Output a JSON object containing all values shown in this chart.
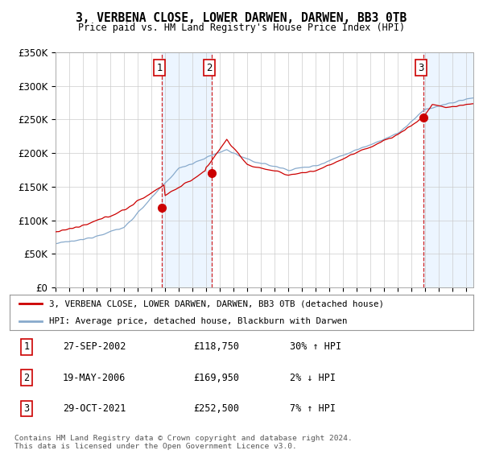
{
  "title": "3, VERBENA CLOSE, LOWER DARWEN, DARWEN, BB3 0TB",
  "subtitle": "Price paid vs. HM Land Registry's House Price Index (HPI)",
  "ylim": [
    0,
    350000
  ],
  "yticks": [
    0,
    50000,
    100000,
    150000,
    200000,
    250000,
    300000,
    350000
  ],
  "ytick_labels": [
    "£0",
    "£50K",
    "£100K",
    "£150K",
    "£200K",
    "£250K",
    "£300K",
    "£350K"
  ],
  "xlim_start": 1995,
  "xlim_end": 2025.5,
  "sale_dates_num": [
    2002.74,
    2006.38,
    2021.83
  ],
  "sale_prices": [
    118750,
    169950,
    252500
  ],
  "sale_labels": [
    "1",
    "2",
    "3"
  ],
  "sale_color": "#cc0000",
  "hpi_color": "#88aacc",
  "plot_bg": "#ffffff",
  "fig_bg": "#ffffff",
  "grid_color": "#cccccc",
  "shade_color": "#ddeeff",
  "shade_alpha": 0.55,
  "legend_label_red": "3, VERBENA CLOSE, LOWER DARWEN, DARWEN, BB3 0TB (detached house)",
  "legend_label_blue": "HPI: Average price, detached house, Blackburn with Darwen",
  "table_rows": [
    [
      "1",
      "27-SEP-2002",
      "£118,750",
      "30% ↑ HPI"
    ],
    [
      "2",
      "19-MAY-2006",
      "£169,950",
      "2% ↓ HPI"
    ],
    [
      "3",
      "29-OCT-2021",
      "£252,500",
      "7% ↑ HPI"
    ]
  ],
  "footnote": "Contains HM Land Registry data © Crown copyright and database right 2024.\nThis data is licensed under the Open Government Licence v3.0."
}
